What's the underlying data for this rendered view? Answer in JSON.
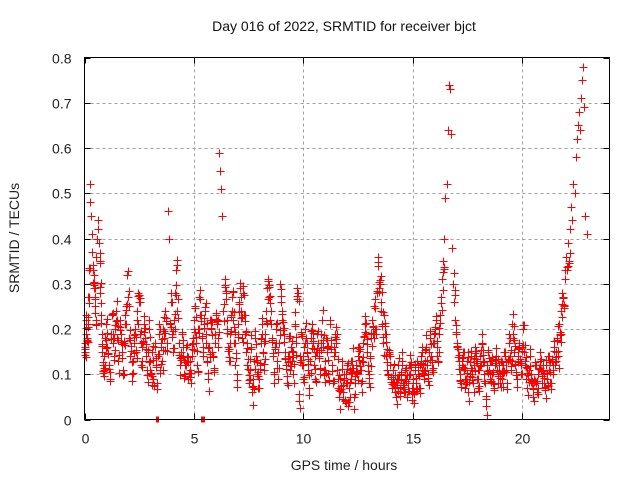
{
  "chart_data": {
    "type": "scatter",
    "title": "Day 016 of 2022, SRMTID for receiver bjct",
    "xlabel": "GPS time / hours",
    "ylabel": "SRMTID / TECUs",
    "xlim": [
      0,
      24
    ],
    "ylim": [
      0,
      0.8
    ],
    "xticks": [
      0,
      5,
      10,
      15,
      20
    ],
    "xtick_labels": [
      "0",
      "5",
      "10",
      "15",
      "20"
    ],
    "yticks": [
      0,
      0.1,
      0.2,
      0.3,
      0.4,
      0.5,
      0.6,
      0.7,
      0.8
    ],
    "ytick_labels": [
      "0",
      "0.1",
      "0.2",
      "0.3",
      "0.4",
      "0.5",
      "0.6",
      "0.7",
      "0.8"
    ],
    "grid": true,
    "legend": "none",
    "marker": "plus",
    "color": "#ff0000",
    "series": [
      {
        "name": "SRMTID",
        "blocks": [
          {
            "t0": 0.0,
            "dt": 0.03,
            "y": [
              0.17,
              0.16,
              0.22,
              0.19,
              0.18,
              0.21,
              0.27,
              0.33,
              0.52,
              0.48,
              0.45,
              0.41,
              0.37,
              0.33,
              0.32,
              0.29,
              0.25,
              0.22,
              0.36,
              0.4,
              0.44,
              0.42,
              0.39,
              0.35,
              0.28,
              0.23,
              0.19,
              0.15,
              0.12,
              0.11
            ]
          },
          {
            "t0": 0.9,
            "dt": 0.05,
            "y": [
              0.14,
              0.18,
              0.21,
              0.16,
              0.12,
              0.09,
              0.19,
              0.23,
              0.17,
              0.14,
              0.2,
              0.24,
              0.18,
              0.13,
              0.22,
              0.19,
              0.15,
              0.11,
              0.17,
              0.21,
              0.25,
              0.32,
              0.27,
              0.18,
              0.14,
              0.1,
              0.13,
              0.17,
              0.2,
              0.15,
              0.22,
              0.28,
              0.26,
              0.19,
              0.12,
              0.16,
              0.21,
              0.18,
              0.14,
              0.11,
              0.15,
              0.2
            ]
          },
          {
            "t0": 3.0,
            "dt": 0.05,
            "y": [
              0.13,
              0.1,
              0.15,
              0.09,
              0.17,
              0.12,
              0.08,
              0.14,
              0.19,
              0.11,
              0.16,
              0.13,
              0.2,
              0.18,
              0.24,
              0.17,
              0.46,
              0.4,
              0.21,
              0.26,
              0.19,
              0.15,
              0.22,
              0.28,
              0.33,
              0.24,
              0.17,
              0.12,
              0.15,
              0.19,
              0.14,
              0.1,
              0.12,
              0.16,
              0.13,
              0.09,
              0.11,
              0.08,
              0.14,
              0.18
            ]
          },
          {
            "t0": 5.0,
            "dt": 0.05,
            "y": [
              0.22,
              0.25,
              0.17,
              0.12,
              0.2,
              0.27,
              0.23,
              0.18,
              0.14,
              0.21,
              0.24,
              0.19,
              0.13,
              0.09,
              0.16,
              0.22,
              0.2,
              0.15,
              0.11,
              0.17,
              0.23,
              0.21,
              0.18,
              0.59,
              0.55,
              0.51,
              0.45,
              0.24,
              0.31,
              0.28,
              0.2,
              0.16,
              0.13,
              0.19,
              0.23,
              0.27,
              0.22,
              0.17,
              0.12,
              0.1
            ]
          },
          {
            "t0": 7.0,
            "dt": 0.05,
            "y": [
              0.21,
              0.26,
              0.29,
              0.24,
              0.18,
              0.28,
              0.23,
              0.19,
              0.15,
              0.12,
              0.08,
              0.11,
              0.16,
              0.06,
              0.09,
              0.13,
              0.18,
              0.14,
              0.1,
              0.07,
              0.12,
              0.17,
              0.21,
              0.15,
              0.11,
              0.19,
              0.24,
              0.29,
              0.31,
              0.27,
              0.22,
              0.18,
              0.14,
              0.1,
              0.16,
              0.2,
              0.13,
              0.09,
              0.17,
              0.3
            ]
          },
          {
            "t0": 9.0,
            "dt": 0.05,
            "y": [
              0.26,
              0.22,
              0.19,
              0.15,
              0.12,
              0.08,
              0.14,
              0.18,
              0.11,
              0.16,
              0.13,
              0.1,
              0.21,
              0.17,
              0.29,
              0.28,
              0.04,
              0.14,
              0.19,
              0.12,
              0.09,
              0.16,
              0.2,
              0.15,
              0.11,
              0.07,
              0.13,
              0.18,
              0.21,
              0.17,
              0.12,
              0.09,
              0.15,
              0.19,
              0.14,
              0.1,
              0.17,
              0.22,
              0.16,
              0.11
            ]
          },
          {
            "t0": 11.0,
            "dt": 0.05,
            "y": [
              0.13,
              0.18,
              0.15,
              0.1,
              0.22,
              0.16,
              0.12,
              0.08,
              0.14,
              0.19,
              0.17,
              0.11,
              0.07,
              0.05,
              0.09,
              0.13,
              0.06,
              0.1,
              0.04,
              0.08,
              0.12,
              0.03,
              0.07,
              0.11,
              0.09,
              0.13,
              0.05,
              0.08,
              0.12,
              0.1,
              0.14,
              0.16,
              0.11,
              0.08,
              0.13,
              0.17,
              0.21,
              0.19,
              0.15,
              0.12
            ]
          },
          {
            "t0": 13.0,
            "dt": 0.05,
            "y": [
              0.1,
              0.14,
              0.18,
              0.22,
              0.19,
              0.25,
              0.2,
              0.28,
              0.34,
              0.29,
              0.3,
              0.26,
              0.21,
              0.17,
              0.23,
              0.19,
              0.14,
              0.11,
              0.15,
              0.12,
              0.09,
              0.07,
              0.11,
              0.08,
              0.06,
              0.05,
              0.09,
              0.12,
              0.07,
              0.1,
              0.13,
              0.08,
              0.06,
              0.11,
              0.09,
              0.05,
              0.08,
              0.12,
              0.1,
              0.07
            ]
          },
          {
            "t0": 15.0,
            "dt": 0.05,
            "y": [
              0.09,
              0.06,
              0.11,
              0.08,
              0.13,
              0.1,
              0.07,
              0.12,
              0.14,
              0.11,
              0.09,
              0.13,
              0.16,
              0.12,
              0.1,
              0.15,
              0.18,
              0.14,
              0.11,
              0.17,
              0.2,
              0.22,
              0.16,
              0.13,
              0.19,
              0.23,
              0.27,
              0.31,
              0.35,
              0.4,
              0.49,
              0.52,
              0.64,
              0.74,
              0.73,
              0.63,
              0.38,
              0.3,
              0.26,
              0.22
            ]
          },
          {
            "t0": 17.0,
            "dt": 0.05,
            "y": [
              0.19,
              0.16,
              0.13,
              0.1,
              0.08,
              0.12,
              0.15,
              0.11,
              0.07,
              0.09,
              0.13,
              0.06,
              0.1,
              0.14,
              0.11,
              0.08,
              0.12,
              0.16,
              0.13,
              0.09,
              0.07,
              0.11,
              0.14,
              0.17,
              0.13,
              0.1,
              0.08,
              0.03,
              0.12,
              0.15,
              0.11,
              0.09,
              0.13,
              0.1,
              0.07,
              0.12,
              0.14,
              0.11,
              0.08,
              0.12
            ]
          },
          {
            "t0": 19.0,
            "dt": 0.05,
            "y": [
              0.1,
              0.13,
              0.09,
              0.12,
              0.15,
              0.11,
              0.08,
              0.13,
              0.17,
              0.14,
              0.11,
              0.21,
              0.18,
              0.15,
              0.12,
              0.09,
              0.14,
              0.17,
              0.13,
              0.1,
              0.16,
              0.2,
              0.15,
              0.12,
              0.09,
              0.07,
              0.11,
              0.14,
              0.1,
              0.08,
              0.05,
              0.09,
              0.12,
              0.08,
              0.06,
              0.1,
              0.13,
              0.11,
              0.08,
              0.12
            ]
          },
          {
            "t0": 21.0,
            "dt": 0.05,
            "y": [
              0.1,
              0.07,
              0.12,
              0.09,
              0.14,
              0.11,
              0.08,
              0.13,
              0.1,
              0.16,
              0.12,
              0.15,
              0.18,
              0.14,
              0.21,
              0.19,
              0.24,
              0.28,
              0.25,
              0.31,
              0.36,
              0.33,
              0.39,
              0.35,
              0.42,
              0.47,
              0.44,
              0.52,
              0.5,
              0.58,
              0.62,
              0.65,
              0.68,
              0.64,
              0.71,
              0.75,
              0.78,
              0.69,
              0.45,
              0.41
            ]
          }
        ]
      }
    ],
    "zero_points": [
      3.3,
      5.35,
      5.42
    ]
  }
}
